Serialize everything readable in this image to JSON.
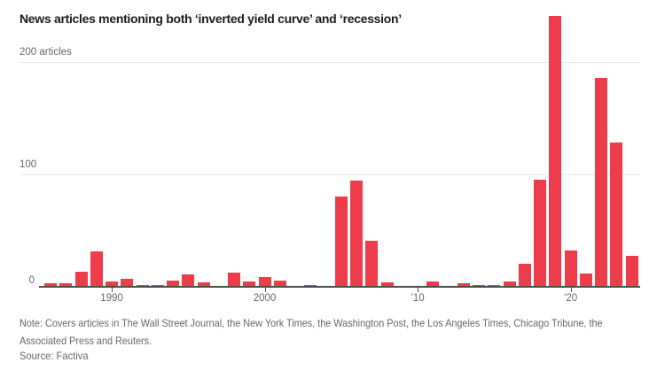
{
  "title": "News articles mentioning both ‘inverted yield curve’ and ‘recession’",
  "colors": {
    "bar": "#ee3d4a",
    "gridline": "#e8e8e8",
    "axis": "#4d4d4d",
    "muted_text": "#666666",
    "title_text": "#1b1b1b"
  },
  "chart_data": {
    "type": "bar",
    "title": "News articles mentioning both ‘inverted yield curve’ and ‘recession’",
    "unit_label": "articles",
    "x": [
      1986,
      1987,
      1988,
      1989,
      1990,
      1991,
      1992,
      1993,
      1994,
      1995,
      1996,
      1997,
      1998,
      1999,
      2000,
      2001,
      2002,
      2003,
      2004,
      2005,
      2006,
      2007,
      2008,
      2009,
      2010,
      2011,
      2012,
      2013,
      2014,
      2015,
      2016,
      2017,
      2018,
      2019,
      2020,
      2021,
      2022,
      2023,
      2024
    ],
    "values": [
      2,
      2,
      13,
      31,
      4,
      6,
      1,
      1,
      5,
      10,
      3,
      0,
      12,
      4,
      8,
      5,
      0,
      1,
      0,
      80,
      94,
      40,
      3,
      0,
      0,
      4,
      0,
      2,
      1,
      1,
      4,
      20,
      95,
      241,
      32,
      11,
      186,
      128,
      27
    ],
    "xlabel": "",
    "ylabel": "articles",
    "ylim": [
      0,
      245
    ],
    "grid": "horizontal",
    "legend": "none",
    "y_ticks": [
      {
        "value": 200,
        "label": "200 articles"
      },
      {
        "value": 100,
        "label": "100"
      },
      {
        "value": 0,
        "label": "0"
      }
    ],
    "x_ticks": [
      {
        "year": 1990,
        "label": "1990"
      },
      {
        "year": 2000,
        "label": "2000"
      },
      {
        "year": 2010,
        "label": "’10"
      },
      {
        "year": 2020,
        "label": "’20"
      }
    ]
  },
  "footer": {
    "note": "Note: Covers articles in The Wall Street Journal, the New York Times, the Washington Post, the Los Angeles Times, Chicago Tribune, the Associated Press and Reuters.",
    "source": "Source: Factiva"
  }
}
